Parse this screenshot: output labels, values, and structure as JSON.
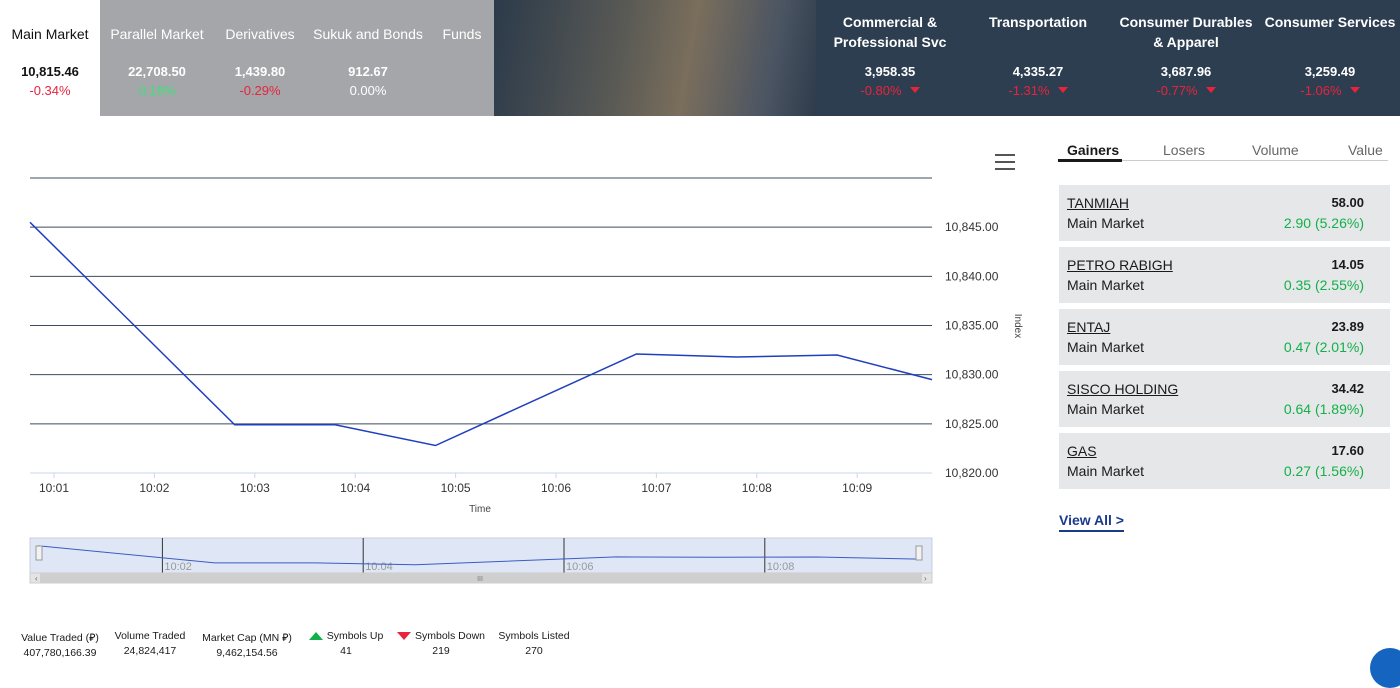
{
  "markets": [
    {
      "name": "Main Market",
      "value": "10,815.46",
      "change": "-0.34%"
    },
    {
      "name": "Parallel Market",
      "value": "22,708.50",
      "change": "0.18%"
    },
    {
      "name": "Derivatives",
      "value": "1,439.80",
      "change": "-0.29%"
    },
    {
      "name": "Sukuk and Bonds",
      "value": "912.67",
      "change": "0.00%"
    },
    {
      "name": "Funds",
      "value": "",
      "change": ""
    }
  ],
  "sectors": [
    {
      "name_line1": "Commercial &",
      "name_line2": "Professional Svc",
      "value": "3,958.35",
      "change": "-0.80%"
    },
    {
      "name_line1": "Transportation",
      "name_line2": "",
      "value": "4,335.27",
      "change": "-1.31%"
    },
    {
      "name_line1": "Consumer Durables",
      "name_line2": "& Apparel",
      "value": "3,687.96",
      "change": "-0.77%"
    },
    {
      "name_line1": "Consumer Services",
      "name_line2": "",
      "value": "3,259.49",
      "change": "-1.06%"
    }
  ],
  "chart_data": {
    "type": "line",
    "xlabel": "Time",
    "ylabel": "Index",
    "x_ticks": [
      "10:01",
      "10:02",
      "10:03",
      "10:04",
      "10:05",
      "10:06",
      "10:07",
      "10:08",
      "10:09"
    ],
    "y_ticks": [
      "10,845.00",
      "10,840.00",
      "10,835.00",
      "10,830.00",
      "10,825.00",
      "10,820.00"
    ],
    "ylim": [
      10820,
      10850
    ],
    "x": [
      "09:59.5",
      "10:02.8",
      "10:03.8",
      "10:04.8",
      "10:06.8",
      "10:07.8",
      "10:08.8",
      "10:09.8"
    ],
    "values": [
      10845.5,
      10824.9,
      10824.9,
      10822.8,
      10832.1,
      10831.8,
      10832.0,
      10829.5
    ],
    "navigator_labels": [
      "10:02",
      "10:04",
      "10:06",
      "10:08"
    ],
    "grid": true,
    "line_color": "#1f3fbf"
  },
  "side_tabs": [
    "Gainers",
    "Losers",
    "Volume",
    "Value"
  ],
  "gainers": [
    {
      "symbol": "TANMIAH",
      "market": "Main Market",
      "price": "58.00",
      "change": "2.90 (5.26%)"
    },
    {
      "symbol": "PETRO RABIGH",
      "market": "Main Market",
      "price": "14.05",
      "change": "0.35 (2.55%)"
    },
    {
      "symbol": "ENTAJ",
      "market": "Main Market",
      "price": "23.89",
      "change": "0.47 (2.01%)"
    },
    {
      "symbol": "SISCO HOLDING",
      "market": "Main Market",
      "price": "34.42",
      "change": "0.64 (1.89%)"
    },
    {
      "symbol": "GAS",
      "market": "Main Market",
      "price": "17.60",
      "change": "0.27 (1.56%)"
    }
  ],
  "view_all": "View All >",
  "stats": [
    {
      "label": "Value Traded (⃁)",
      "value": "407,780,166.39"
    },
    {
      "label": "Volume Traded",
      "value": "24,824,417"
    },
    {
      "label": "Market Cap (MN ⃁)",
      "value": "9,462,154.56"
    },
    {
      "label": "Symbols Up",
      "value": "41"
    },
    {
      "label": "Symbols Down",
      "value": "219"
    },
    {
      "label": "Symbols Listed",
      "value": "270"
    }
  ],
  "colors": {
    "negative": "#e8243c",
    "positive": "#12b04a",
    "sector_bg": "#2d3e50",
    "tab_grey": "#a4a6a9"
  }
}
